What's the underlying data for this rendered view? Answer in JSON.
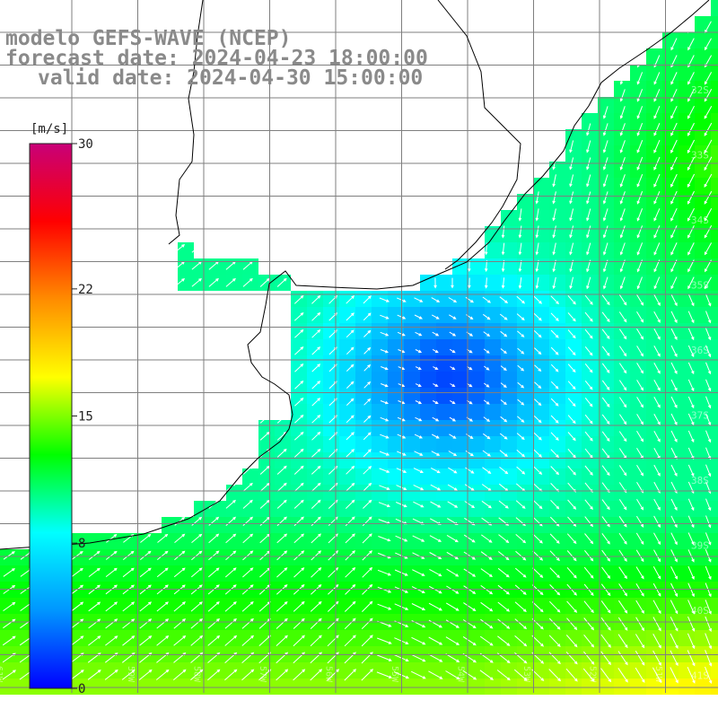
{
  "title": {
    "model": "modelo GEFS-WAVE (NCEP)",
    "forecast": "forecast date: 2024-04-23 18:00:00",
    "valid": "valid date: 2024-04-30 15:00:00"
  },
  "colorbar": {
    "unit": "[m/s]",
    "min": 0,
    "max": 30,
    "ticks": [
      "30",
      "22",
      "15",
      "8",
      "0"
    ],
    "tick_values": [
      30,
      22,
      15,
      8,
      0
    ],
    "colors": [
      "#0000ff",
      "#0096ff",
      "#00ffff",
      "#00ff00",
      "#ffff00",
      "#ff8c00",
      "#ff0000",
      "#c80078"
    ]
  },
  "map": {
    "lat_labels": [
      "32S",
      "33S",
      "34S",
      "35S",
      "36S",
      "37S",
      "38S",
      "39S",
      "40S",
      "41S"
    ],
    "lon_labels": [
      "61W",
      "60W",
      "59W",
      "58W",
      "57W",
      "56W",
      "55W",
      "54W",
      "53W",
      "52W",
      "51W"
    ],
    "land_color": "#ffffff",
    "grid_color": "#7f7f7f",
    "coast_color": "#000000"
  }
}
